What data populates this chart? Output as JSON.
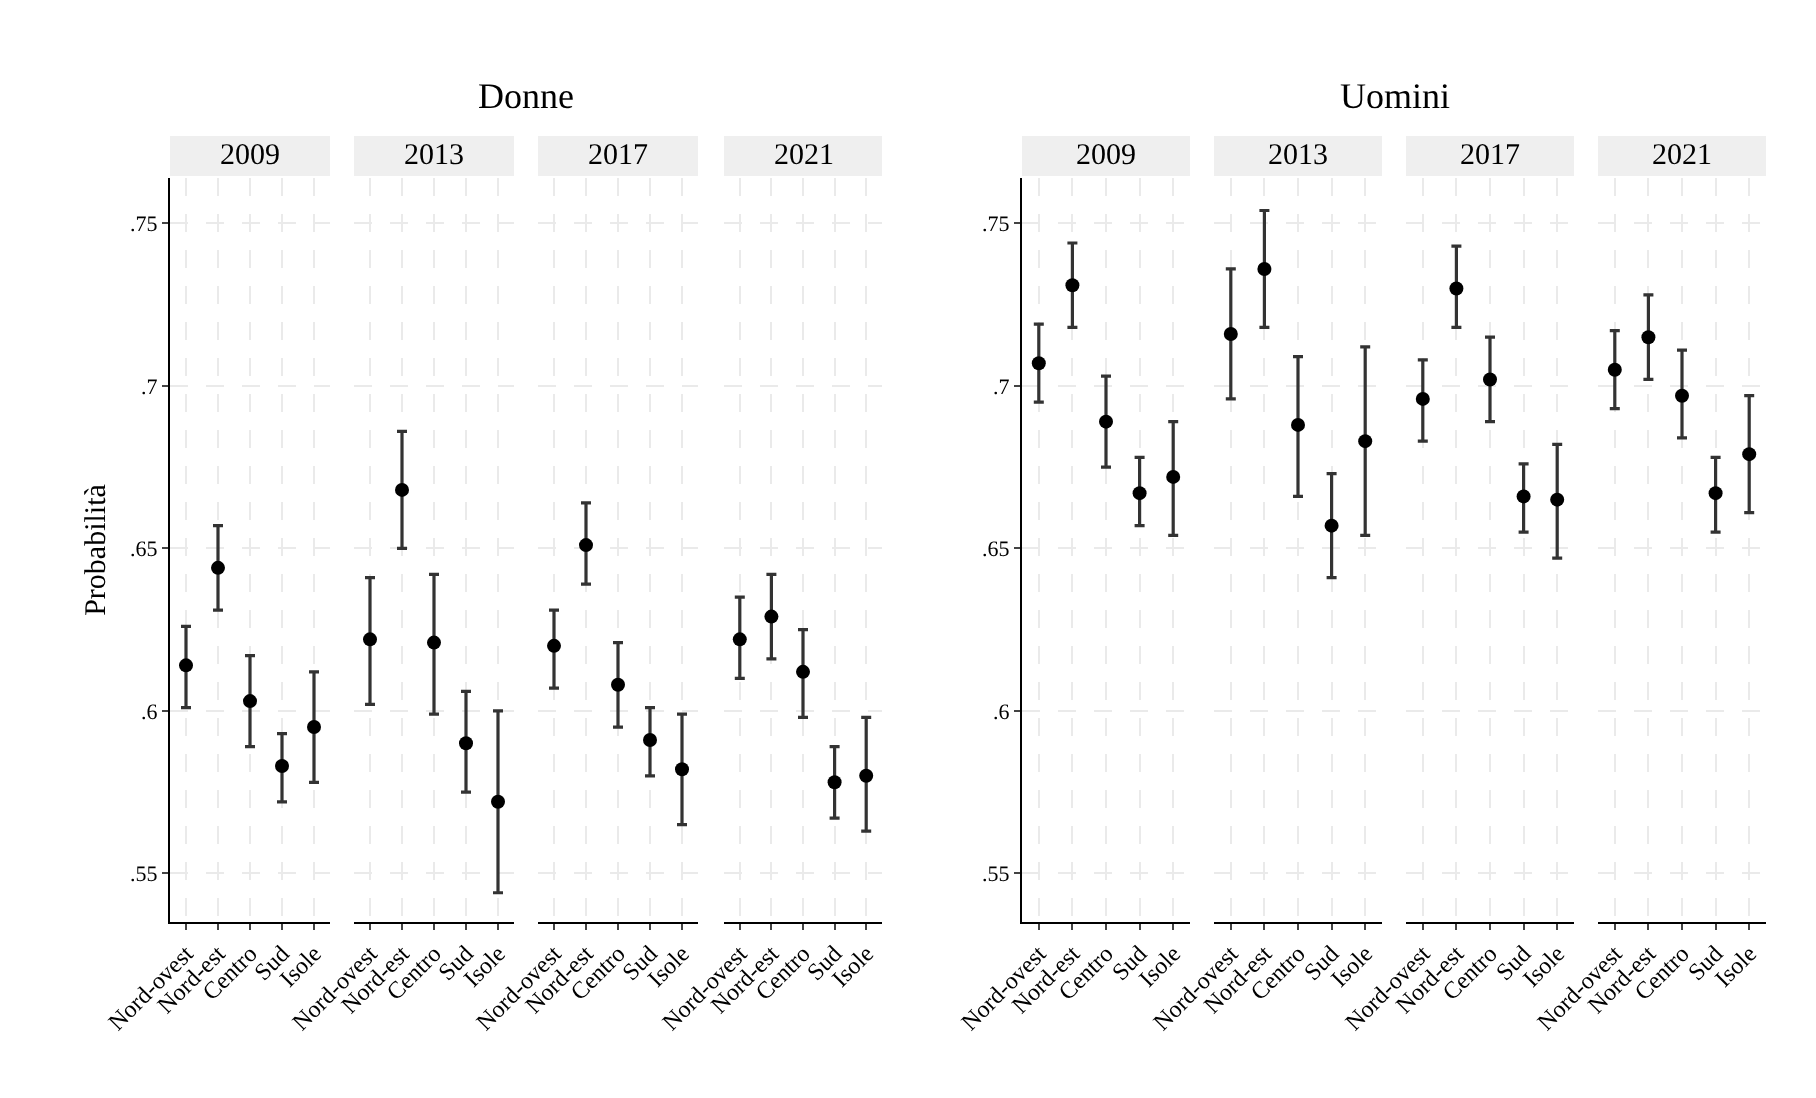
{
  "chart_data": [
    {
      "type": "scatter",
      "title": "2009",
      "annotations": [
        "Donne"
      ],
      "ylabel": "Probabilità",
      "categories": [
        "Nord-ovest",
        "Nord-est",
        "Centro",
        "Sud",
        "Isole"
      ],
      "values": [
        0.614,
        0.644,
        0.603,
        0.583,
        0.595
      ],
      "errors": [
        [
          0.601,
          0.626
        ],
        [
          0.631,
          0.657
        ],
        [
          0.589,
          0.617
        ],
        [
          0.572,
          0.593
        ],
        [
          0.578,
          0.612
        ]
      ],
      "color": "#000000",
      "marker": "circle",
      "grid": true,
      "ylim": [
        0.535,
        0.764
      ],
      "yticks": [
        {
          "value": 0.55,
          "label": ".55"
        },
        {
          "value": 0.6,
          "label": ".6"
        },
        {
          "value": 0.65,
          "label": ".65"
        },
        {
          "value": 0.7,
          "label": ".7"
        },
        {
          "value": 0.75,
          "label": ".75"
        }
      ]
    },
    {
      "type": "scatter",
      "title": "2013",
      "categories": [
        "Nord-ovest",
        "Nord-est",
        "Centro",
        "Sud",
        "Isole"
      ],
      "values": [
        0.622,
        0.668,
        0.621,
        0.59,
        0.572
      ],
      "errors": [
        [
          0.602,
          0.641
        ],
        [
          0.65,
          0.686
        ],
        [
          0.599,
          0.642
        ],
        [
          0.575,
          0.606
        ],
        [
          0.544,
          0.6
        ]
      ],
      "color": "#000000",
      "marker": "circle",
      "grid": true,
      "tick_labels": "x",
      "ylim": [
        0.535,
        0.764
      ],
      "yticks": [
        0.55,
        0.6,
        0.65,
        0.7,
        0.75
      ]
    },
    {
      "type": "scatter",
      "title": "2017",
      "categories": [
        "Nord-ovest",
        "Nord-est",
        "Centro",
        "Sud",
        "Isole"
      ],
      "values": [
        0.62,
        0.651,
        0.608,
        0.591,
        0.582
      ],
      "errors": [
        [
          0.607,
          0.631
        ],
        [
          0.639,
          0.664
        ],
        [
          0.595,
          0.621
        ],
        [
          0.58,
          0.601
        ],
        [
          0.565,
          0.599
        ]
      ],
      "color": "#000000",
      "marker": "circle",
      "grid": true,
      "tick_labels": "x",
      "ylim": [
        0.535,
        0.764
      ],
      "yticks": [
        0.55,
        0.6,
        0.65,
        0.7,
        0.75
      ]
    },
    {
      "type": "scatter",
      "title": "2021",
      "categories": [
        "Nord-ovest",
        "Nord-est",
        "Centro",
        "Sud",
        "Isole"
      ],
      "values": [
        0.622,
        0.629,
        0.612,
        0.578,
        0.58
      ],
      "errors": [
        [
          0.61,
          0.635
        ],
        [
          0.616,
          0.642
        ],
        [
          0.598,
          0.625
        ],
        [
          0.567,
          0.589
        ],
        [
          0.563,
          0.598
        ]
      ],
      "color": "#000000",
      "marker": "circle",
      "grid": true,
      "tick_labels": "x",
      "ylim": [
        0.535,
        0.764
      ],
      "yticks": [
        0.55,
        0.6,
        0.65,
        0.7,
        0.75
      ]
    },
    {
      "type": "scatter",
      "title": "2009",
      "annotations": [
        "Uomini"
      ],
      "categories": [
        "Nord-ovest",
        "Nord-est",
        "Centro",
        "Sud",
        "Isole"
      ],
      "values": [
        0.707,
        0.731,
        0.689,
        0.667,
        0.672
      ],
      "errors": [
        [
          0.695,
          0.719
        ],
        [
          0.718,
          0.744
        ],
        [
          0.675,
          0.703
        ],
        [
          0.657,
          0.678
        ],
        [
          0.654,
          0.689
        ]
      ],
      "color": "#000000",
      "marker": "circle",
      "grid": true,
      "ylim": [
        0.535,
        0.764
      ],
      "yticks": [
        {
          "value": 0.55,
          "label": ".55"
        },
        {
          "value": 0.6,
          "label": ".6"
        },
        {
          "value": 0.65,
          "label": ".65"
        },
        {
          "value": 0.7,
          "label": ".7"
        },
        {
          "value": 0.75,
          "label": ".75"
        }
      ]
    },
    {
      "type": "scatter",
      "title": "2013",
      "categories": [
        "Nord-ovest",
        "Nord-est",
        "Centro",
        "Sud",
        "Isole"
      ],
      "values": [
        0.716,
        0.736,
        0.688,
        0.657,
        0.683
      ],
      "errors": [
        [
          0.696,
          0.736
        ],
        [
          0.718,
          0.754
        ],
        [
          0.666,
          0.709
        ],
        [
          0.641,
          0.673
        ],
        [
          0.654,
          0.712
        ]
      ],
      "color": "#000000",
      "marker": "circle",
      "grid": true,
      "tick_labels": "x",
      "ylim": [
        0.535,
        0.764
      ],
      "yticks": [
        0.55,
        0.6,
        0.65,
        0.7,
        0.75
      ]
    },
    {
      "type": "scatter",
      "title": "2017",
      "categories": [
        "Nord-ovest",
        "Nord-est",
        "Centro",
        "Sud",
        "Isole"
      ],
      "values": [
        0.696,
        0.73,
        0.702,
        0.666,
        0.665
      ],
      "errors": [
        [
          0.683,
          0.708
        ],
        [
          0.718,
          0.743
        ],
        [
          0.689,
          0.715
        ],
        [
          0.655,
          0.676
        ],
        [
          0.647,
          0.682
        ]
      ],
      "color": "#000000",
      "marker": "circle",
      "grid": true,
      "tick_labels": "x",
      "ylim": [
        0.535,
        0.764
      ],
      "yticks": [
        0.55,
        0.6,
        0.65,
        0.7,
        0.75
      ]
    },
    {
      "type": "scatter",
      "title": "2021",
      "categories": [
        "Nord-ovest",
        "Nord-est",
        "Centro",
        "Sud",
        "Isole"
      ],
      "values": [
        0.705,
        0.715,
        0.697,
        0.667,
        0.679
      ],
      "errors": [
        [
          0.693,
          0.717
        ],
        [
          0.702,
          0.728
        ],
        [
          0.684,
          0.711
        ],
        [
          0.655,
          0.678
        ],
        [
          0.661,
          0.697
        ]
      ],
      "color": "#000000",
      "marker": "circle",
      "grid": true,
      "tick_labels": "x",
      "ylim": [
        0.535,
        0.764
      ],
      "yticks": [
        0.55,
        0.6,
        0.65,
        0.7,
        0.75
      ]
    }
  ]
}
